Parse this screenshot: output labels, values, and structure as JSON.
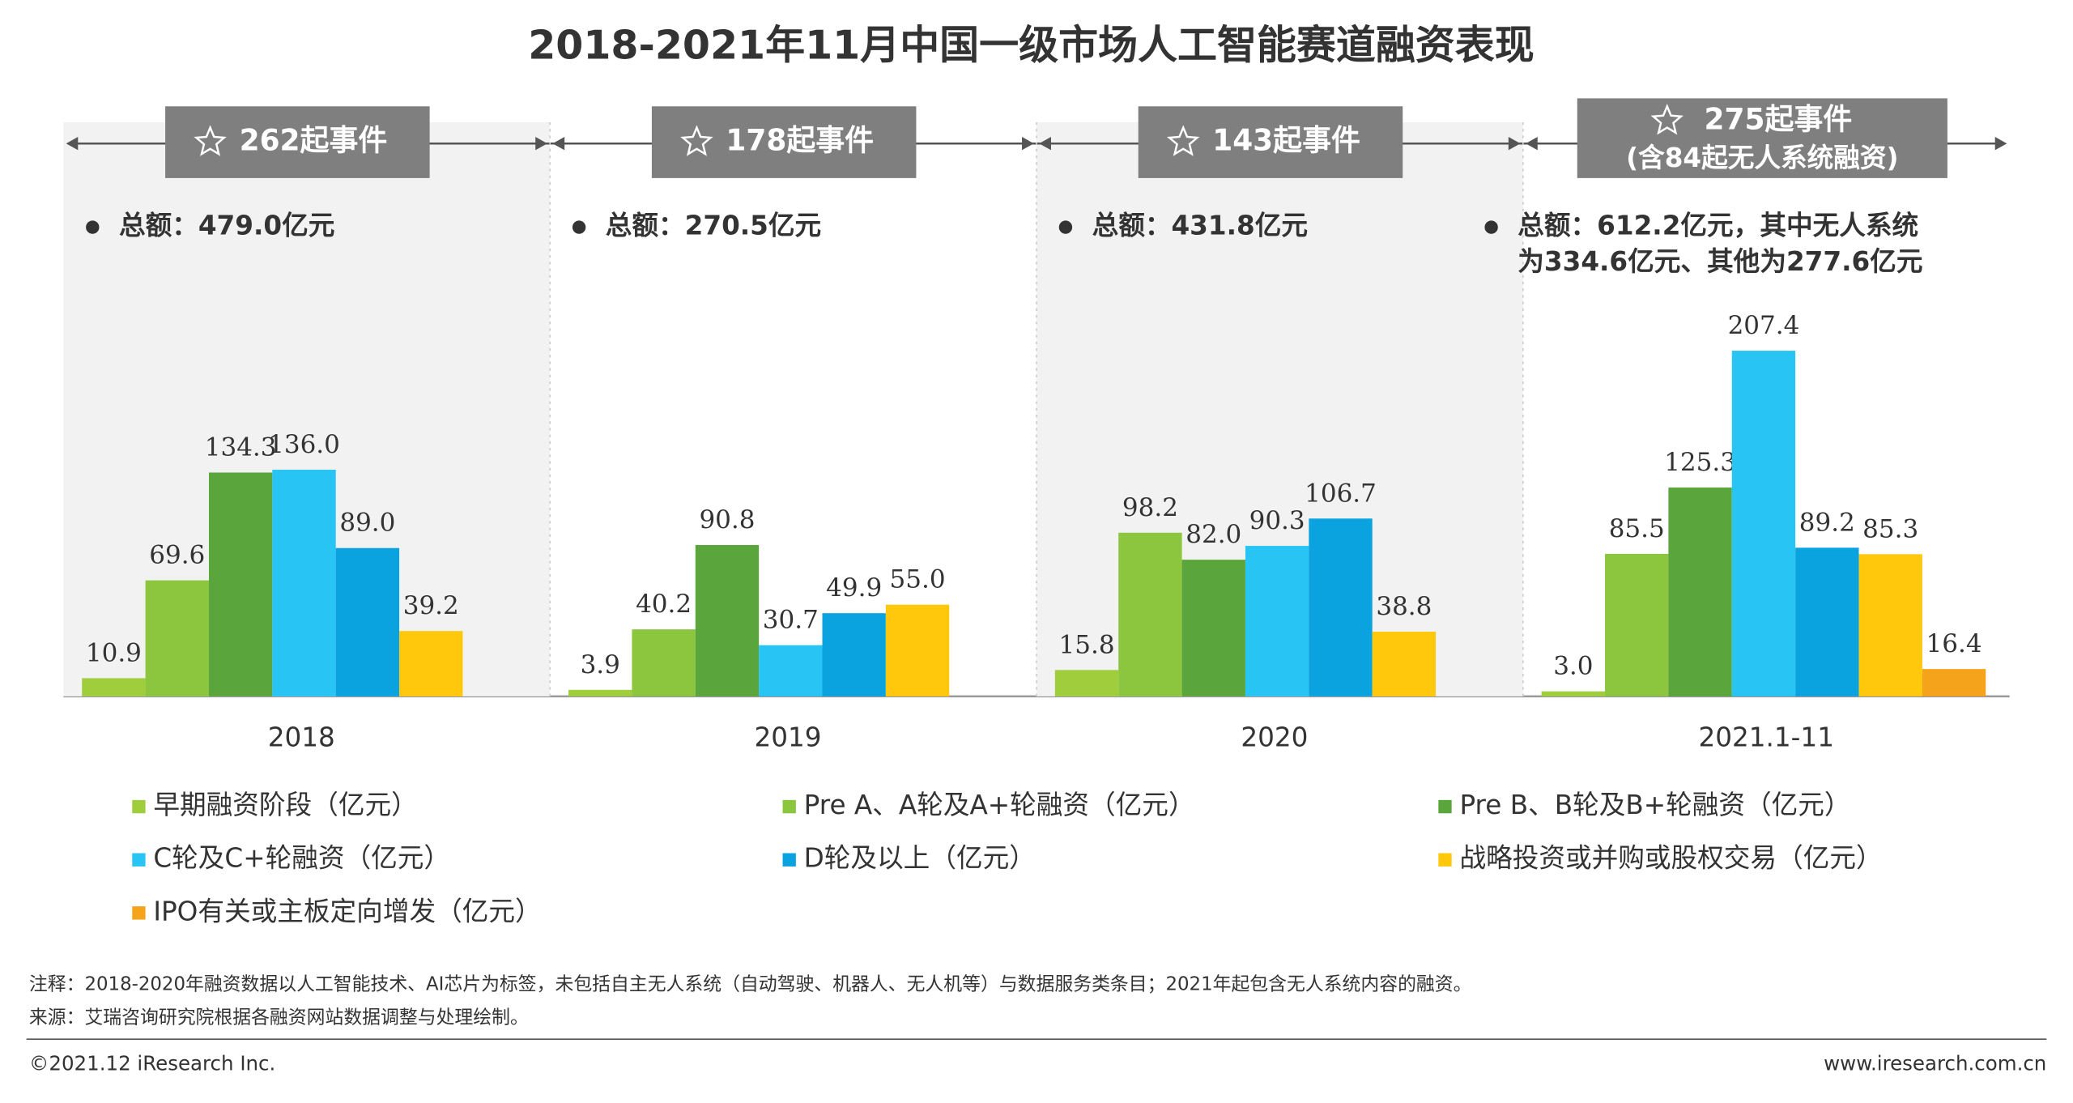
{
  "chart_data": {
    "type": "bar",
    "title": "2018-2021年11月中国一级市场人工智能赛道融资表现",
    "categories": [
      "2018",
      "2019",
      "2020",
      "2021.1-11"
    ],
    "annotations": [
      {
        "events": "262起事件",
        "total": [
          "总额：479.0亿元"
        ]
      },
      {
        "events": "178起事件",
        "total": [
          "总额：270.5亿元"
        ]
      },
      {
        "events": "143起事件",
        "total": [
          "总额：431.8亿元"
        ]
      },
      {
        "events": "275起事件",
        "events_note": "(含84起无人系统融资)",
        "total": [
          "总额：612.2亿元，其中无人系统",
          "为334.6亿元、其他为277.6亿元"
        ]
      }
    ],
    "series": [
      {
        "name": "早期融资阶段（亿元）",
        "color": "#9fcd3c",
        "values": [
          10.9,
          3.9,
          15.8,
          3.0
        ],
        "value_labels": [
          "10.9",
          "3.9",
          "15.8",
          "3.0"
        ]
      },
      {
        "name": "Pre A、A轮及A+轮融资（亿元）",
        "color": "#8cc63f",
        "values": [
          69.6,
          40.2,
          98.2,
          85.5
        ],
        "value_labels": [
          "69.6",
          "40.2",
          "98.2",
          "85.5"
        ]
      },
      {
        "name": "Pre B、B轮及B+轮融资（亿元）",
        "color": "#5aa63c",
        "values": [
          134.3,
          90.8,
          82.0,
          125.3
        ],
        "value_labels": [
          "134.3",
          "90.8",
          "82.0",
          "125.3"
        ]
      },
      {
        "name": "C轮及C+轮融资（亿元）",
        "color": "#28c4f4",
        "values": [
          136.0,
          30.7,
          90.3,
          207.4
        ],
        "value_labels": [
          "136.0",
          "30.7",
          "90.3",
          "207.4"
        ]
      },
      {
        "name": "D轮及以上（亿元）",
        "color": "#0ba2e0",
        "values": [
          89.0,
          49.9,
          106.7,
          89.2
        ],
        "value_labels": [
          "89.0",
          "49.9",
          "106.7",
          "89.2"
        ]
      },
      {
        "name": "战略投资或并购或股权交易（亿元）",
        "color": "#ffc80c",
        "values": [
          39.2,
          55.0,
          38.8,
          85.3
        ],
        "value_labels": [
          "39.2",
          "55.0",
          "38.8",
          "85.3"
        ]
      },
      {
        "name": "IPO有关或主板定向增发（亿元）",
        "color": "#f5a31b",
        "values": [
          null,
          null,
          null,
          16.4
        ],
        "value_labels": [
          null,
          null,
          null,
          "16.4"
        ]
      }
    ],
    "note": "注释：2018-2020年融资数据以人工智能技术、AI芯片为标签，未包括自主无人系统（自动驾驶、机器人、无人机等）与数据服务类条目；2021年起包含无人系统内容的融资。",
    "source": "来源：艾瑞咨询研究院根据各融资网站数据调整与处理绘制。",
    "copyright": "©2021.12 iResearch Inc.",
    "website": "www.iresearch.com.cn"
  }
}
